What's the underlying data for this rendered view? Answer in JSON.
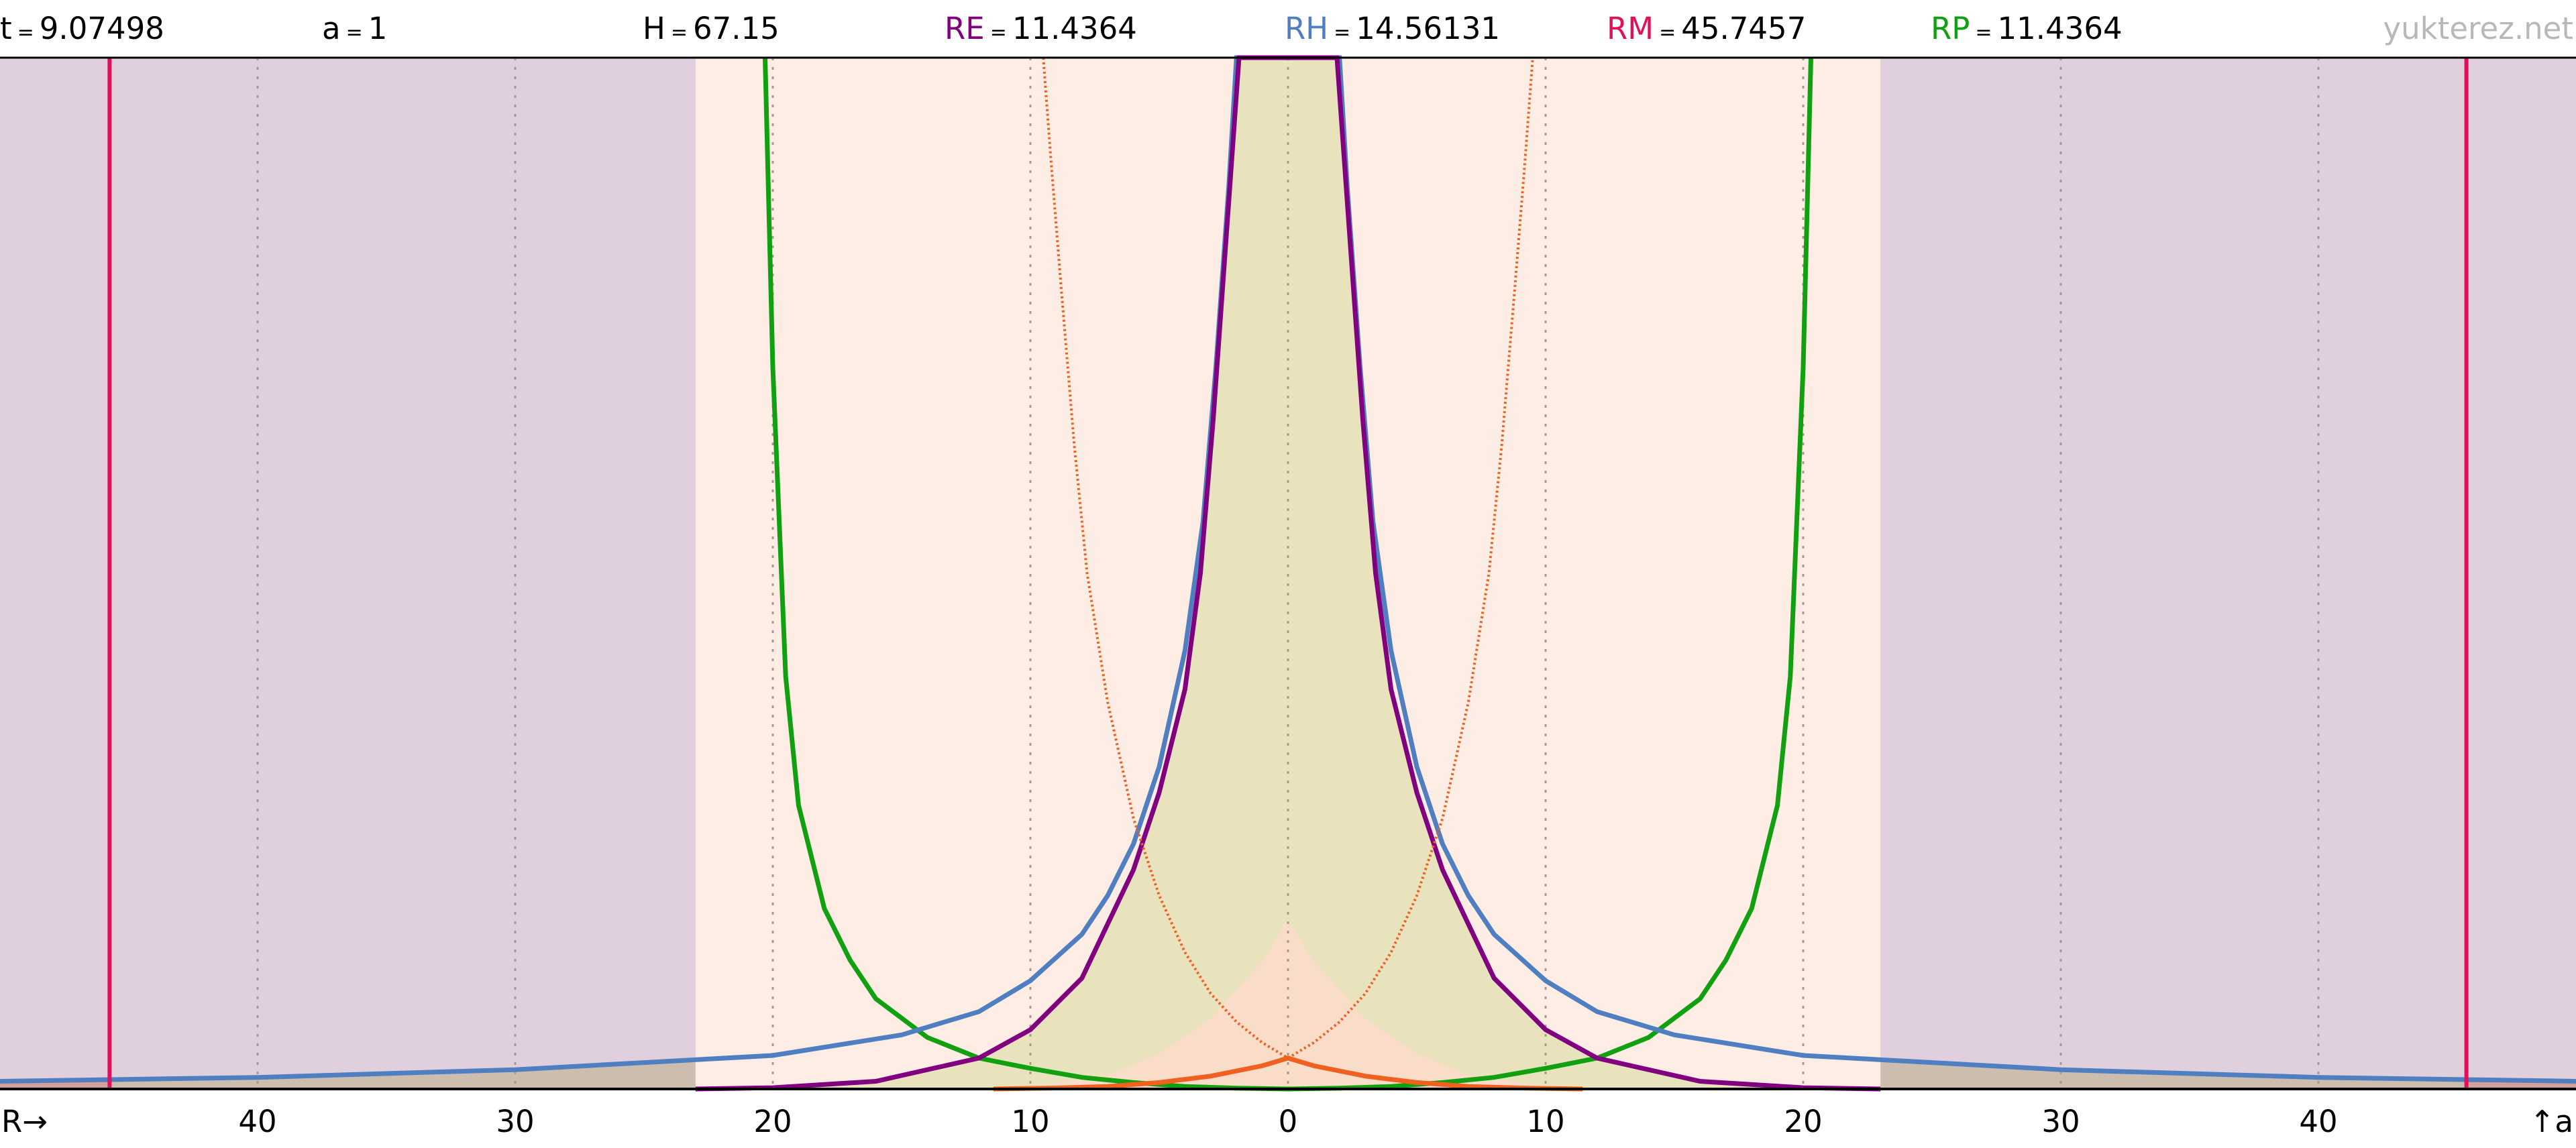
{
  "header": {
    "params": [
      {
        "label": "t",
        "value": "9.07498",
        "color": "#000000"
      },
      {
        "label": "a",
        "value": "1",
        "color": "#000000"
      },
      {
        "label": "H",
        "value": "67.15",
        "color": "#000000"
      },
      {
        "label": "RE",
        "value": "11.4364",
        "color": "#800080"
      },
      {
        "label": "RH",
        "value": "14.56131",
        "color": "#4f7fc0"
      },
      {
        "label": "RM",
        "value": "45.7457",
        "color": "#e0105a"
      },
      {
        "label": "RP",
        "value": "11.4364",
        "color": "#10a010"
      }
    ],
    "equals": "=",
    "site": "yukterez.net"
  },
  "chart_data": {
    "type": "line",
    "x_axis_label": "R→",
    "y_axis_label": "↑a",
    "xlim": [
      -50,
      50
    ],
    "ylim": [
      0,
      40
    ],
    "x_ticks": [
      -40,
      -30,
      -20,
      -10,
      0,
      10,
      20,
      30,
      40
    ],
    "x_tick_labels": [
      "40",
      "30",
      "20",
      "10",
      "0",
      "10",
      "20",
      "30",
      "40"
    ],
    "grid": "vertical dotted",
    "markers": [
      {
        "x": -45.7457,
        "color": "#e0105a"
      },
      {
        "x": 45.7457,
        "color": "#e0105a"
      }
    ],
    "regions": [
      {
        "from": -50,
        "to": -45.7457,
        "color": "#d4a0a0"
      },
      {
        "from": -45.7457,
        "to": 45.7457,
        "color": "#ccbdaf"
      }
    ],
    "series": [
      {
        "color": "#10a010",
        "style": "solid",
        "fill": "#e2c2cb",
        "points": [
          [
            -20.3,
            40
          ],
          [
            -20,
            28
          ],
          [
            -19.5,
            16
          ],
          [
            -19,
            11
          ],
          [
            -18,
            7
          ],
          [
            -17,
            5
          ],
          [
            -16,
            3.5
          ],
          [
            -14,
            2
          ],
          [
            -12,
            1.2
          ],
          [
            -10,
            0.8
          ],
          [
            -8,
            0.45
          ],
          [
            -6,
            0.25
          ],
          [
            -4,
            0.1
          ],
          [
            -2,
            0.03
          ],
          [
            0,
            0
          ],
          [
            2,
            0.03
          ],
          [
            4,
            0.1
          ],
          [
            6,
            0.25
          ],
          [
            8,
            0.45
          ],
          [
            10,
            0.8
          ],
          [
            12,
            1.2
          ],
          [
            14,
            2
          ],
          [
            16,
            3.5
          ],
          [
            17,
            5
          ],
          [
            18,
            7
          ],
          [
            19,
            11
          ],
          [
            19.5,
            16
          ],
          [
            20,
            28
          ],
          [
            20.3,
            40
          ]
        ]
      },
      {
        "color": "#4f7fc0",
        "style": "solid",
        "fill": "#e0cfdd",
        "points": [
          [
            -50,
            0.3
          ],
          [
            -40,
            0.45
          ],
          [
            -30,
            0.75
          ],
          [
            -20,
            1.3
          ],
          [
            -15,
            2.1
          ],
          [
            -12,
            3
          ],
          [
            -10,
            4.2
          ],
          [
            -8,
            6
          ],
          [
            -7,
            7.5
          ],
          [
            -6,
            9.5
          ],
          [
            -5,
            12.5
          ],
          [
            -4,
            17
          ],
          [
            -3.3,
            22
          ],
          [
            -2.8,
            28
          ],
          [
            -2.3,
            35
          ],
          [
            -2,
            40
          ],
          [
            2,
            40
          ],
          [
            2.3,
            35
          ],
          [
            2.8,
            28
          ],
          [
            3.3,
            22
          ],
          [
            4,
            17
          ],
          [
            5,
            12.5
          ],
          [
            6,
            9.5
          ],
          [
            7,
            7.5
          ],
          [
            8,
            6
          ],
          [
            10,
            4.2
          ],
          [
            12,
            3
          ],
          [
            15,
            2.1
          ],
          [
            20,
            1.3
          ],
          [
            30,
            0.75
          ],
          [
            40,
            0.45
          ],
          [
            50,
            0.3
          ]
        ]
      },
      {
        "color": "#800080",
        "style": "solid",
        "fill": "#fdede4",
        "points": [
          [
            -23,
            0
          ],
          [
            -20,
            0.05
          ],
          [
            -16,
            0.3
          ],
          [
            -12,
            1.2
          ],
          [
            -10,
            2.3
          ],
          [
            -8,
            4.3
          ],
          [
            -6,
            8.5
          ],
          [
            -5,
            11.5
          ],
          [
            -4,
            15.5
          ],
          [
            -3.4,
            20
          ],
          [
            -2.9,
            26
          ],
          [
            -2.4,
            33
          ],
          [
            -1.9,
            40
          ],
          [
            1.9,
            40
          ],
          [
            2.4,
            33
          ],
          [
            2.9,
            26
          ],
          [
            3.4,
            20
          ],
          [
            4,
            15.5
          ],
          [
            5,
            11.5
          ],
          [
            6,
            8.5
          ],
          [
            8,
            4.3
          ],
          [
            10,
            2.3
          ],
          [
            12,
            1.2
          ],
          [
            16,
            0.3
          ],
          [
            20,
            0.05
          ],
          [
            23,
            0
          ]
        ]
      },
      {
        "color": "#f06020",
        "style": "dotted",
        "points": [
          [
            -9.5,
            40
          ],
          [
            -9.2,
            36
          ],
          [
            -8.8,
            31
          ],
          [
            -8.3,
            25
          ],
          [
            -7.8,
            20
          ],
          [
            -7,
            15
          ],
          [
            -6,
            10.5
          ],
          [
            -5,
            7.5
          ],
          [
            -4,
            5.3
          ],
          [
            -3,
            3.7
          ],
          [
            -2,
            2.6
          ],
          [
            -1,
            1.8
          ],
          [
            0,
            1.2
          ]
        ]
      },
      {
        "color": "#f06020",
        "style": "dotted",
        "points": [
          [
            0,
            1.2
          ],
          [
            1,
            1.8
          ],
          [
            2,
            2.6
          ],
          [
            3,
            3.7
          ],
          [
            4,
            5.3
          ],
          [
            5,
            7.5
          ],
          [
            6,
            10.5
          ],
          [
            7,
            15
          ],
          [
            7.8,
            20
          ],
          [
            8.3,
            25
          ],
          [
            8.8,
            31
          ],
          [
            9.2,
            36
          ],
          [
            9.5,
            40
          ]
        ]
      },
      {
        "color": "#f06020",
        "style": "solid",
        "fill": "#fcdccb",
        "points": [
          [
            -11.4364,
            0
          ],
          [
            -9,
            0.04
          ],
          [
            -7,
            0.1
          ],
          [
            -5,
            0.25
          ],
          [
            -3,
            0.5
          ],
          [
            -1,
            0.9
          ],
          [
            0,
            1.2
          ],
          [
            1,
            0.9
          ],
          [
            3,
            0.5
          ],
          [
            5,
            0.25
          ],
          [
            7,
            0.1
          ],
          [
            9,
            0.04
          ],
          [
            11.4364,
            0
          ]
        ]
      }
    ]
  }
}
